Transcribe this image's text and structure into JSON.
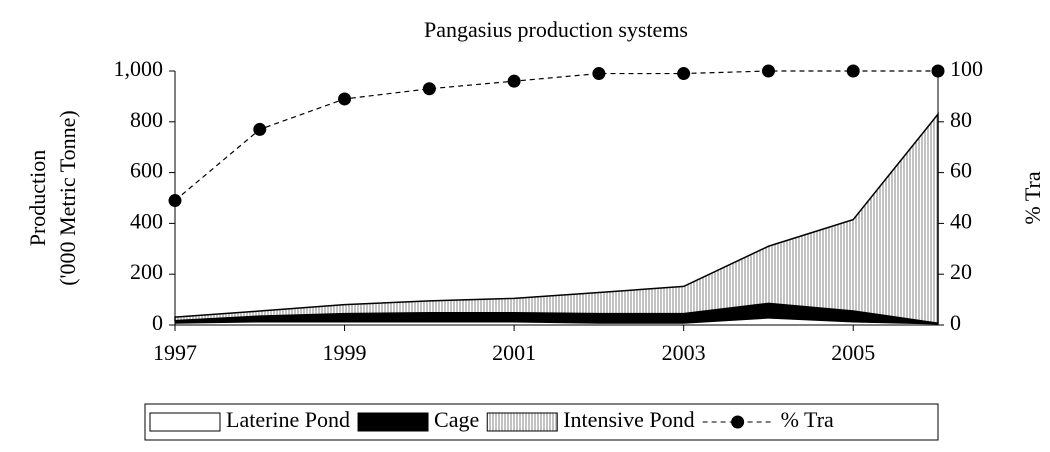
{
  "chart_data": {
    "type": "stacked_area_line",
    "title": "Pangasius production systems",
    "ylabel": [
      "Production",
      "('000 Metric Tonne)"
    ],
    "y2label": "% Tra",
    "x": [
      1997,
      1998,
      1999,
      2000,
      2001,
      2002,
      2003,
      2004,
      2005,
      2006
    ],
    "xlim": [
      1997,
      2006
    ],
    "xticks": [
      1997,
      1999,
      2001,
      2003,
      2005
    ],
    "ylim": [
      0,
      1000
    ],
    "yticks": [
      0,
      200,
      400,
      600,
      800,
      {
        "value": 1000,
        "label": "1,000"
      }
    ],
    "y2lim": [
      0,
      100
    ],
    "y2ticks": [
      0,
      20,
      40,
      60,
      80,
      100
    ],
    "series": [
      {
        "name": "Laterine Pond",
        "color": "#ffffff",
        "values": [
          5,
          10,
          10,
          10,
          10,
          5,
          5,
          25,
          10,
          2
        ]
      },
      {
        "name": "Cage",
        "color": "#000000",
        "values": [
          12,
          25,
          35,
          38,
          38,
          40,
          40,
          60,
          45,
          5
        ]
      },
      {
        "name": "Intensive Pond",
        "color": "#c8c8c8",
        "values": [
          14,
          20,
          35,
          47,
          57,
          83,
          107,
          225,
          360,
          823
        ]
      },
      {
        "name": "% Tra",
        "color": "#000000",
        "axis": "y2",
        "values": [
          49,
          77,
          89,
          93,
          96,
          99,
          99,
          100,
          100,
          100
        ]
      }
    ]
  }
}
